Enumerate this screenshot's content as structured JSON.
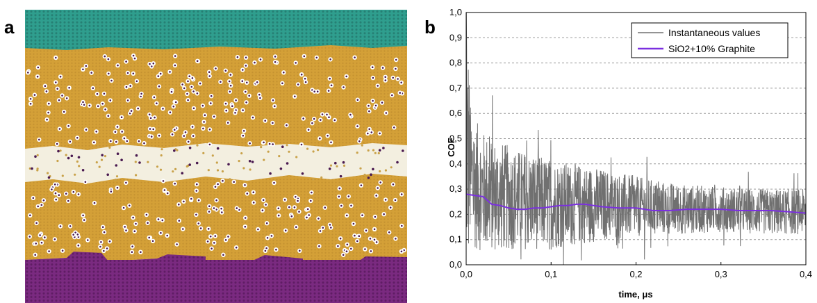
{
  "figure": {
    "panel_a_label": "a",
    "panel_b_label": "b"
  },
  "simulation": {
    "colors": {
      "top_layer": "#2f9e8e",
      "middle_layer": "#d4a037",
      "interface": "#f3efe0",
      "bottom_layer": "#7a2a80",
      "dot": "#4a1a50"
    }
  },
  "chart_data": {
    "type": "line",
    "xlabel": "time, μs",
    "ylabel": "COF",
    "xlim": [
      0,
      0.4
    ],
    "ylim": [
      0,
      1.0
    ],
    "x_ticks": [
      "0,0",
      "0,1",
      "0,2",
      "0,3",
      "0,4"
    ],
    "y_ticks": [
      "0,0",
      "0,1",
      "0,2",
      "0,3",
      "0,4",
      "0,5",
      "0,6",
      "0,7",
      "0,8",
      "0,9",
      "1,0"
    ],
    "grid": "horizontal dashed",
    "legend_position": "top-right",
    "series": [
      {
        "name": "Instantaneous values",
        "color": "#707070",
        "style": "noisy",
        "envelope": {
          "x": [
            0.0,
            0.002,
            0.005,
            0.01,
            0.02,
            0.04,
            0.06,
            0.08,
            0.1,
            0.15,
            0.2,
            0.25,
            0.3,
            0.35,
            0.4
          ],
          "mean": [
            0.3,
            0.45,
            0.36,
            0.32,
            0.29,
            0.27,
            0.26,
            0.25,
            0.24,
            0.24,
            0.23,
            0.22,
            0.22,
            0.21,
            0.21
          ],
          "spread": [
            0.2,
            0.5,
            0.28,
            0.26,
            0.24,
            0.22,
            0.2,
            0.19,
            0.18,
            0.15,
            0.12,
            0.1,
            0.09,
            0.09,
            0.09
          ]
        }
      },
      {
        "name": "SiO2+10% Graphite",
        "color": "#7b2fe0",
        "x": [
          0.0,
          0.01,
          0.02,
          0.025,
          0.03,
          0.04,
          0.05,
          0.06,
          0.07,
          0.08,
          0.09,
          0.1,
          0.11,
          0.12,
          0.13,
          0.14,
          0.15,
          0.16,
          0.18,
          0.2,
          0.22,
          0.24,
          0.26,
          0.28,
          0.3,
          0.32,
          0.34,
          0.36,
          0.38,
          0.4
        ],
        "y": [
          0.28,
          0.275,
          0.27,
          0.255,
          0.24,
          0.235,
          0.225,
          0.22,
          0.22,
          0.225,
          0.225,
          0.23,
          0.235,
          0.235,
          0.24,
          0.24,
          0.235,
          0.23,
          0.225,
          0.225,
          0.215,
          0.215,
          0.22,
          0.22,
          0.22,
          0.215,
          0.215,
          0.215,
          0.21,
          0.205
        ]
      }
    ]
  }
}
